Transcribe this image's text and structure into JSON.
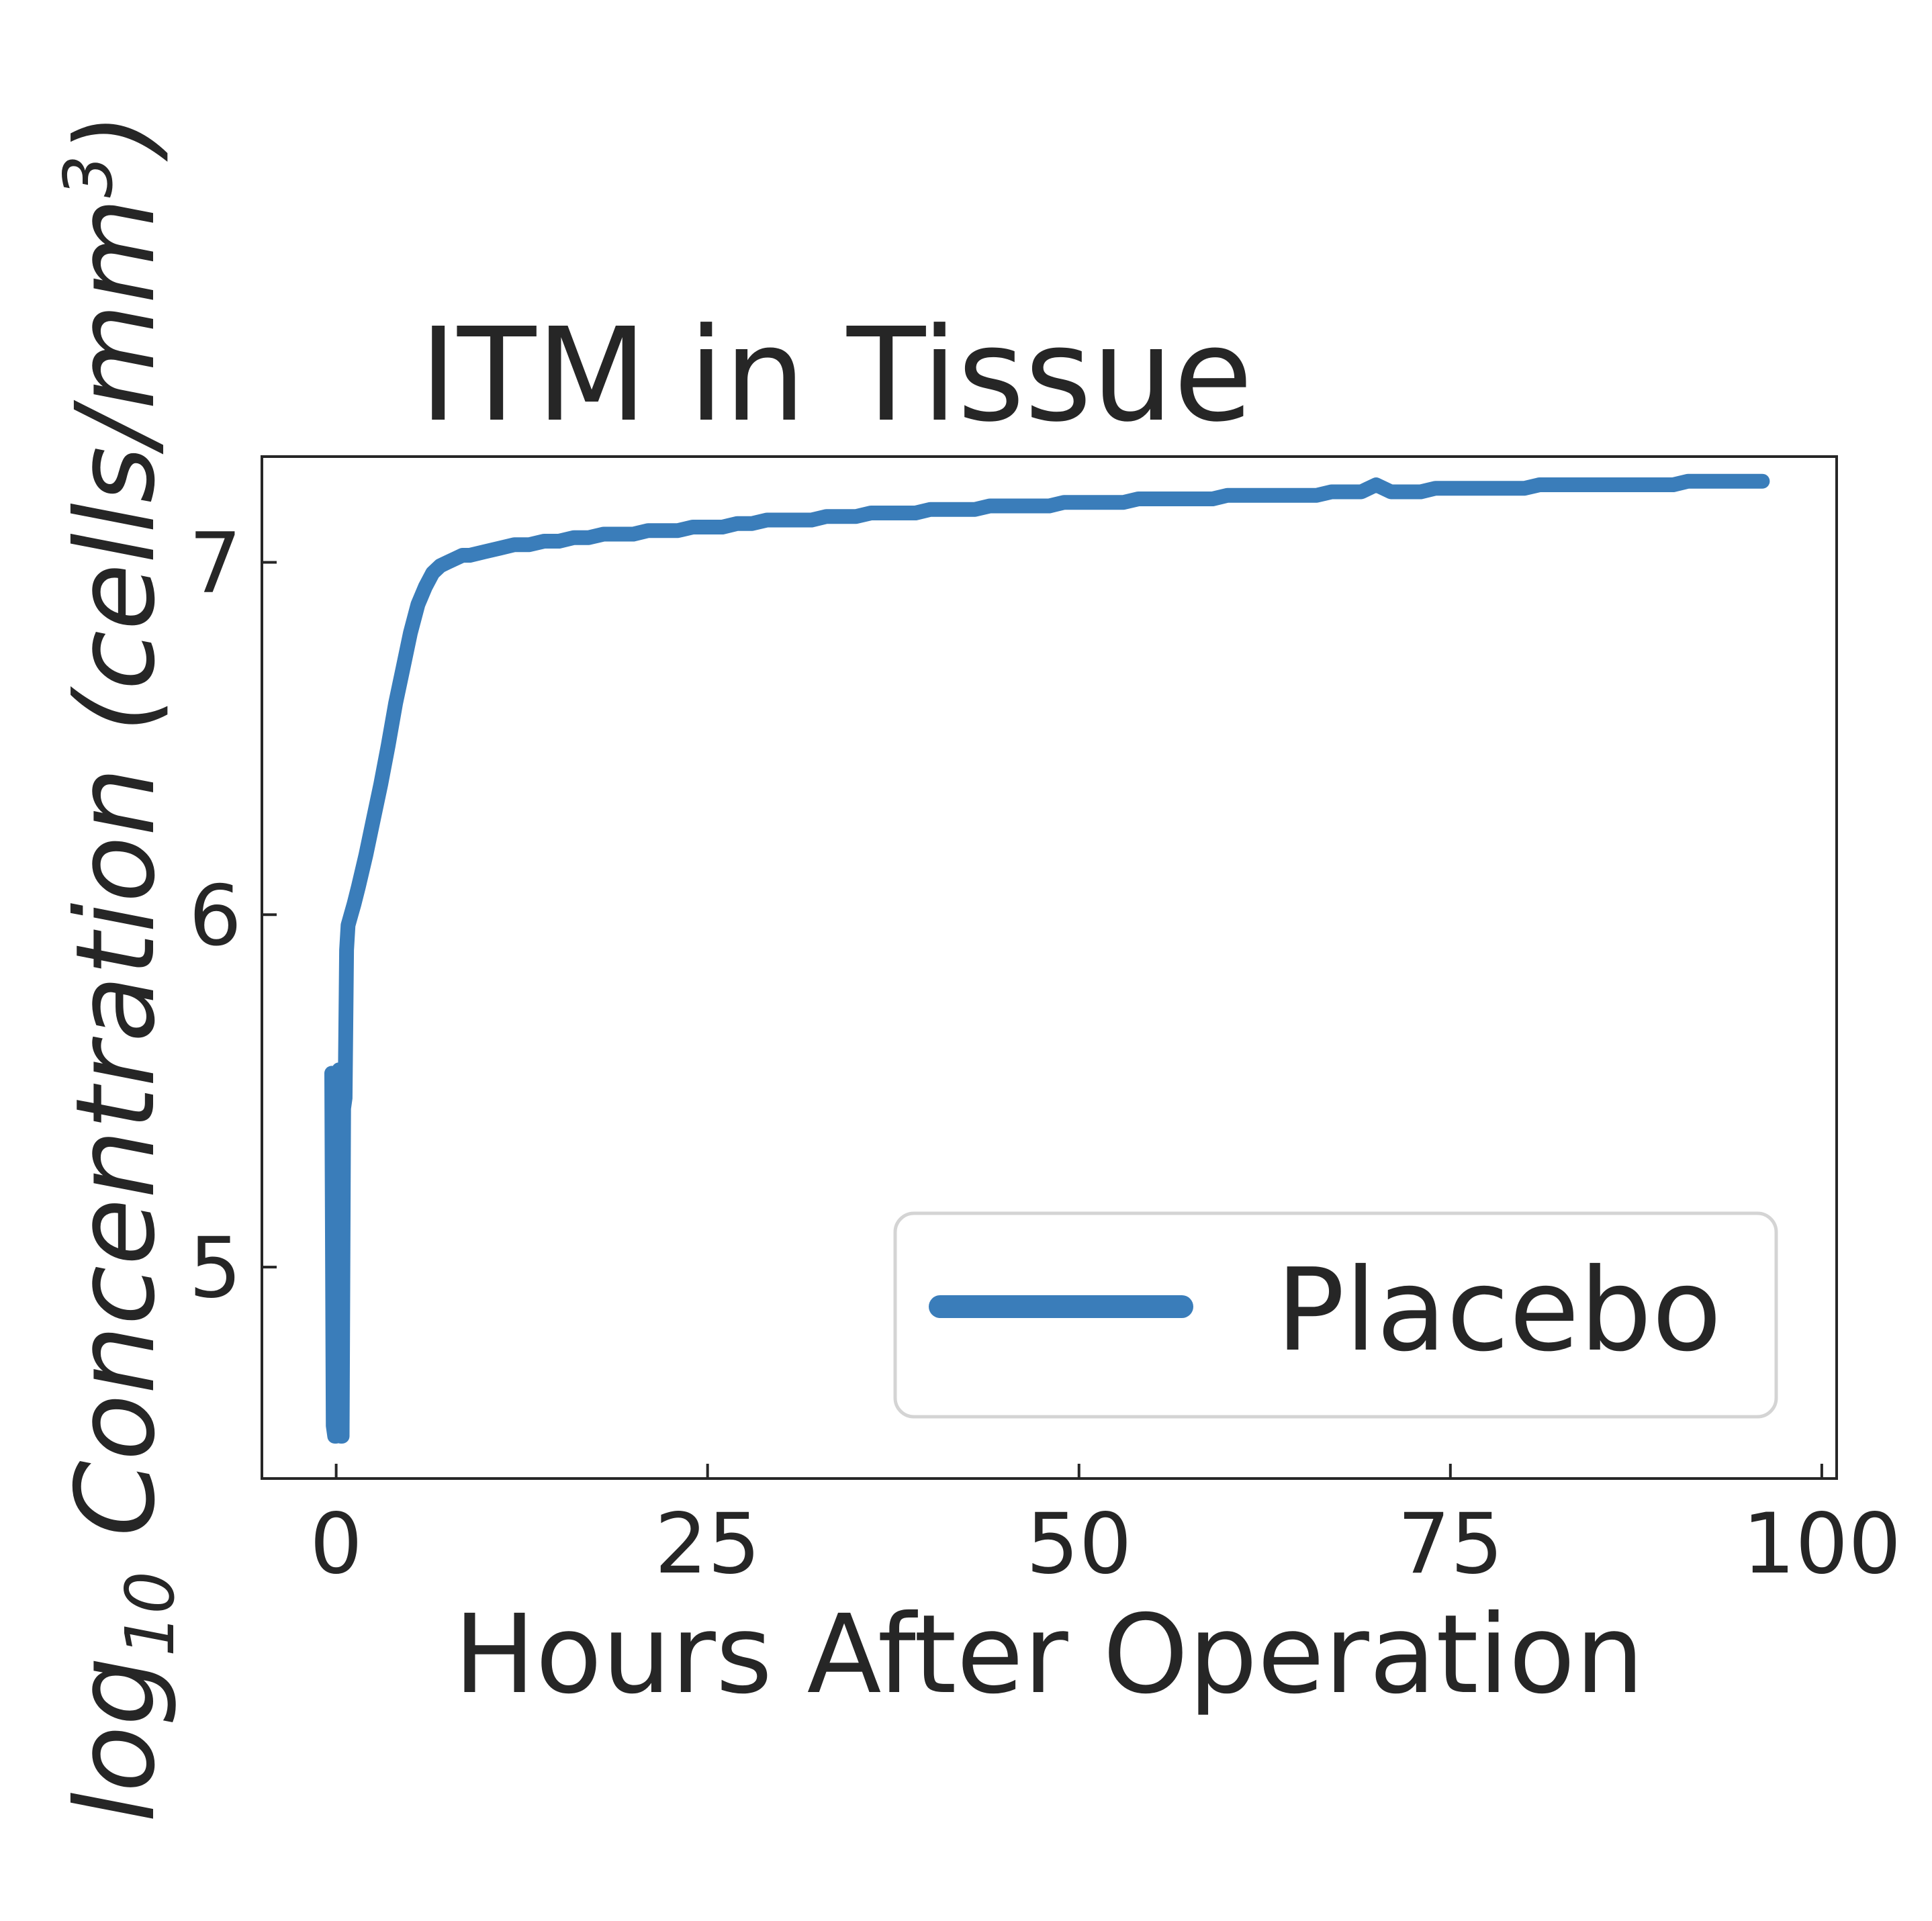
{
  "chart_data": {
    "type": "line",
    "title": "ITM in Tissue",
    "xlabel": "Hours After Operation",
    "ylabel_parts": {
      "prefix": "log",
      "subscript": "10",
      "middle": " Concentration (cells/mm",
      "superscript": "3",
      "suffix": ")"
    },
    "xlim": [
      -5,
      101
    ],
    "ylim": [
      4.4,
      7.3
    ],
    "x_ticks": [
      0,
      25,
      50,
      75,
      100
    ],
    "x_tick_labels": [
      "0",
      "25",
      "50",
      "75",
      "100"
    ],
    "y_ticks": [
      5,
      6,
      7
    ],
    "y_tick_labels": [
      "5",
      "6",
      "7"
    ],
    "grid": false,
    "legend_position": "lower-right",
    "series": [
      {
        "name": "Placebo",
        "color": "#3a7dba",
        "x": [
          -0.3,
          -0.2,
          -0.1,
          0.0,
          0.1,
          0.2,
          0.3,
          0.4,
          0.5,
          0.6,
          0.7,
          0.8,
          1.0,
          1.2,
          1.5,
          2,
          2.5,
          3,
          3.5,
          4,
          4.5,
          5,
          5.5,
          6,
          6.5,
          7,
          7.5,
          8,
          8.5,
          9,
          10,
          11,
          12,
          13,
          14,
          15,
          16,
          17,
          18,
          19,
          20,
          21,
          22,
          23,
          24,
          25,
          26,
          27,
          28,
          29,
          30,
          31,
          32,
          33,
          34,
          35,
          36,
          37,
          38,
          39,
          40,
          41,
          42,
          43,
          44,
          45,
          46,
          47,
          48,
          49,
          50,
          51,
          52,
          53,
          54,
          55,
          56,
          57,
          58,
          59,
          60,
          61,
          62,
          63,
          64,
          65,
          66,
          67,
          68,
          69,
          70,
          71,
          72,
          73,
          74,
          75,
          76,
          77,
          78,
          79,
          80,
          81,
          82,
          83,
          84,
          85,
          86,
          87,
          88,
          89,
          90,
          91,
          92,
          93,
          94,
          95,
          96
        ],
        "y": [
          5.55,
          4.55,
          4.52,
          4.52,
          5.55,
          5.56,
          4.52,
          4.52,
          5.45,
          5.48,
          5.9,
          5.97,
          6.0,
          6.03,
          6.08,
          6.17,
          6.27,
          6.37,
          6.48,
          6.6,
          6.7,
          6.8,
          6.88,
          6.93,
          6.97,
          6.99,
          7.0,
          7.01,
          7.02,
          7.02,
          7.03,
          7.04,
          7.05,
          7.05,
          7.06,
          7.06,
          7.07,
          7.07,
          7.08,
          7.08,
          7.08,
          7.09,
          7.09,
          7.09,
          7.1,
          7.1,
          7.1,
          7.11,
          7.11,
          7.12,
          7.12,
          7.12,
          7.12,
          7.13,
          7.13,
          7.13,
          7.14,
          7.14,
          7.14,
          7.14,
          7.15,
          7.15,
          7.15,
          7.15,
          7.16,
          7.16,
          7.16,
          7.16,
          7.16,
          7.17,
          7.17,
          7.17,
          7.17,
          7.17,
          7.18,
          7.18,
          7.18,
          7.18,
          7.18,
          7.18,
          7.19,
          7.19,
          7.19,
          7.19,
          7.19,
          7.19,
          7.19,
          7.2,
          7.2,
          7.2,
          7.22,
          7.2,
          7.2,
          7.2,
          7.21,
          7.21,
          7.21,
          7.21,
          7.21,
          7.21,
          7.21,
          7.22,
          7.22,
          7.22,
          7.22,
          7.22,
          7.22,
          7.22,
          7.22,
          7.22,
          7.22,
          7.23,
          7.23,
          7.23,
          7.23,
          7.23,
          7.23
        ]
      }
    ]
  }
}
